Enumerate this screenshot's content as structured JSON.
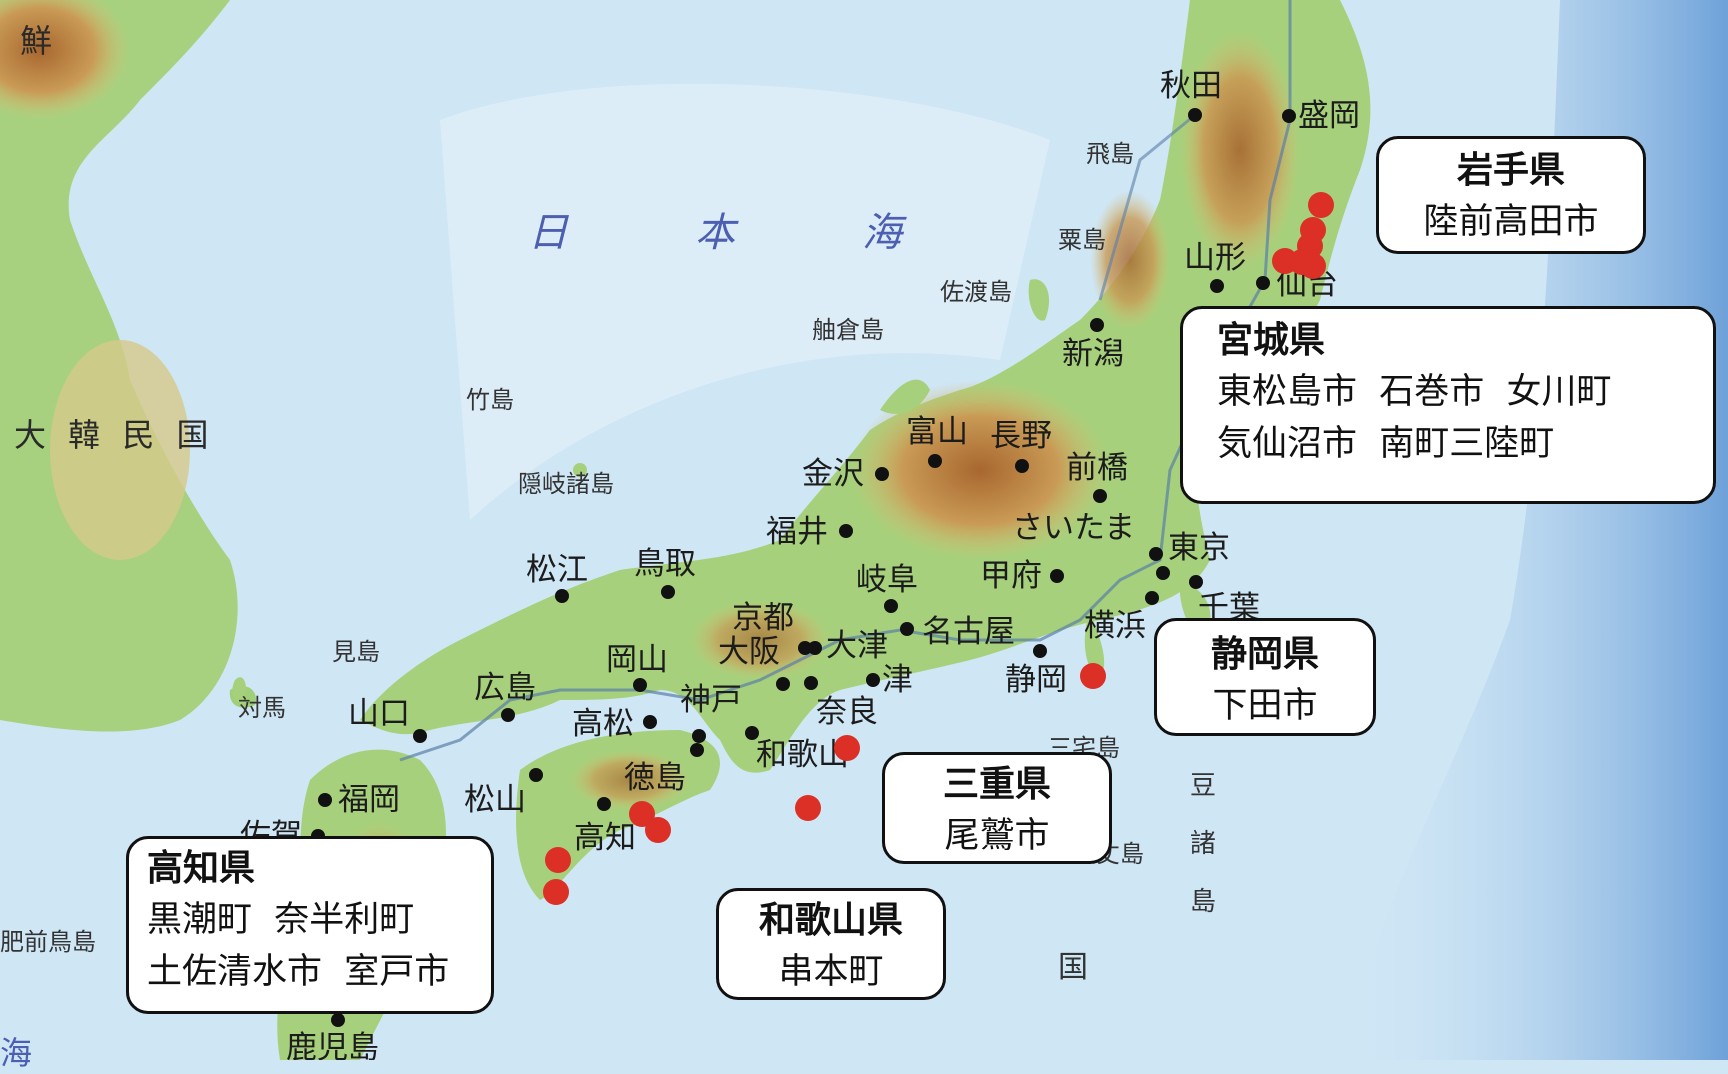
{
  "map": {
    "sea_label": [
      "日",
      "本",
      "海"
    ],
    "country_label": "大 韓 民 国",
    "partial_label_top": "鮮",
    "partial_label_bottom": "海",
    "islands": [
      "飛島",
      "粟島",
      "佐渡島",
      "舳倉島",
      "竹島",
      "隠岐諸島",
      "見島",
      "対馬",
      "三宅島",
      "八丈島",
      "肥前鳥島"
    ],
    "izu_chars": [
      "豆",
      "諸",
      "島"
    ],
    "kuni_char": "国",
    "cities": [
      "秋田",
      "盛岡",
      "山形",
      "仙台",
      "新潟",
      "富山",
      "長野",
      "金沢",
      "前橋",
      "福井",
      "さいたま",
      "東京",
      "千葉",
      "横浜",
      "甲府",
      "岐阜",
      "名古屋",
      "静岡",
      "京都",
      "大津",
      "津",
      "奈良",
      "大阪",
      "神戸",
      "和歌山",
      "鳥取",
      "松江",
      "岡山",
      "広島",
      "山口",
      "高松",
      "徳島",
      "松山",
      "高知",
      "福岡",
      "佐賀",
      "鹿児島"
    ]
  },
  "callouts": {
    "iwate": {
      "prefecture": "岩手県",
      "towns": [
        "陸前高田市"
      ]
    },
    "miyagi": {
      "prefecture": "宮城県",
      "towns": [
        "東松島市  石巻市  女川町",
        "気仙沼市  南町三陸町"
      ]
    },
    "shizuoka": {
      "prefecture": "静岡県",
      "towns": [
        "下田市"
      ]
    },
    "mie": {
      "prefecture": "三重県",
      "towns": [
        "尾鷲市"
      ]
    },
    "wakayama": {
      "prefecture": "和歌山県",
      "towns": [
        "串本町"
      ]
    },
    "kochi": {
      "prefecture": "高知県",
      "towns": [
        "黒潮町  奈半利町",
        "土佐清水市  室戸市"
      ]
    }
  },
  "colors": {
    "marker": "#dc2f26",
    "ocean": "#cfe6f5",
    "land_low": "#9ccf7a",
    "land_high": "#b47a3c"
  }
}
